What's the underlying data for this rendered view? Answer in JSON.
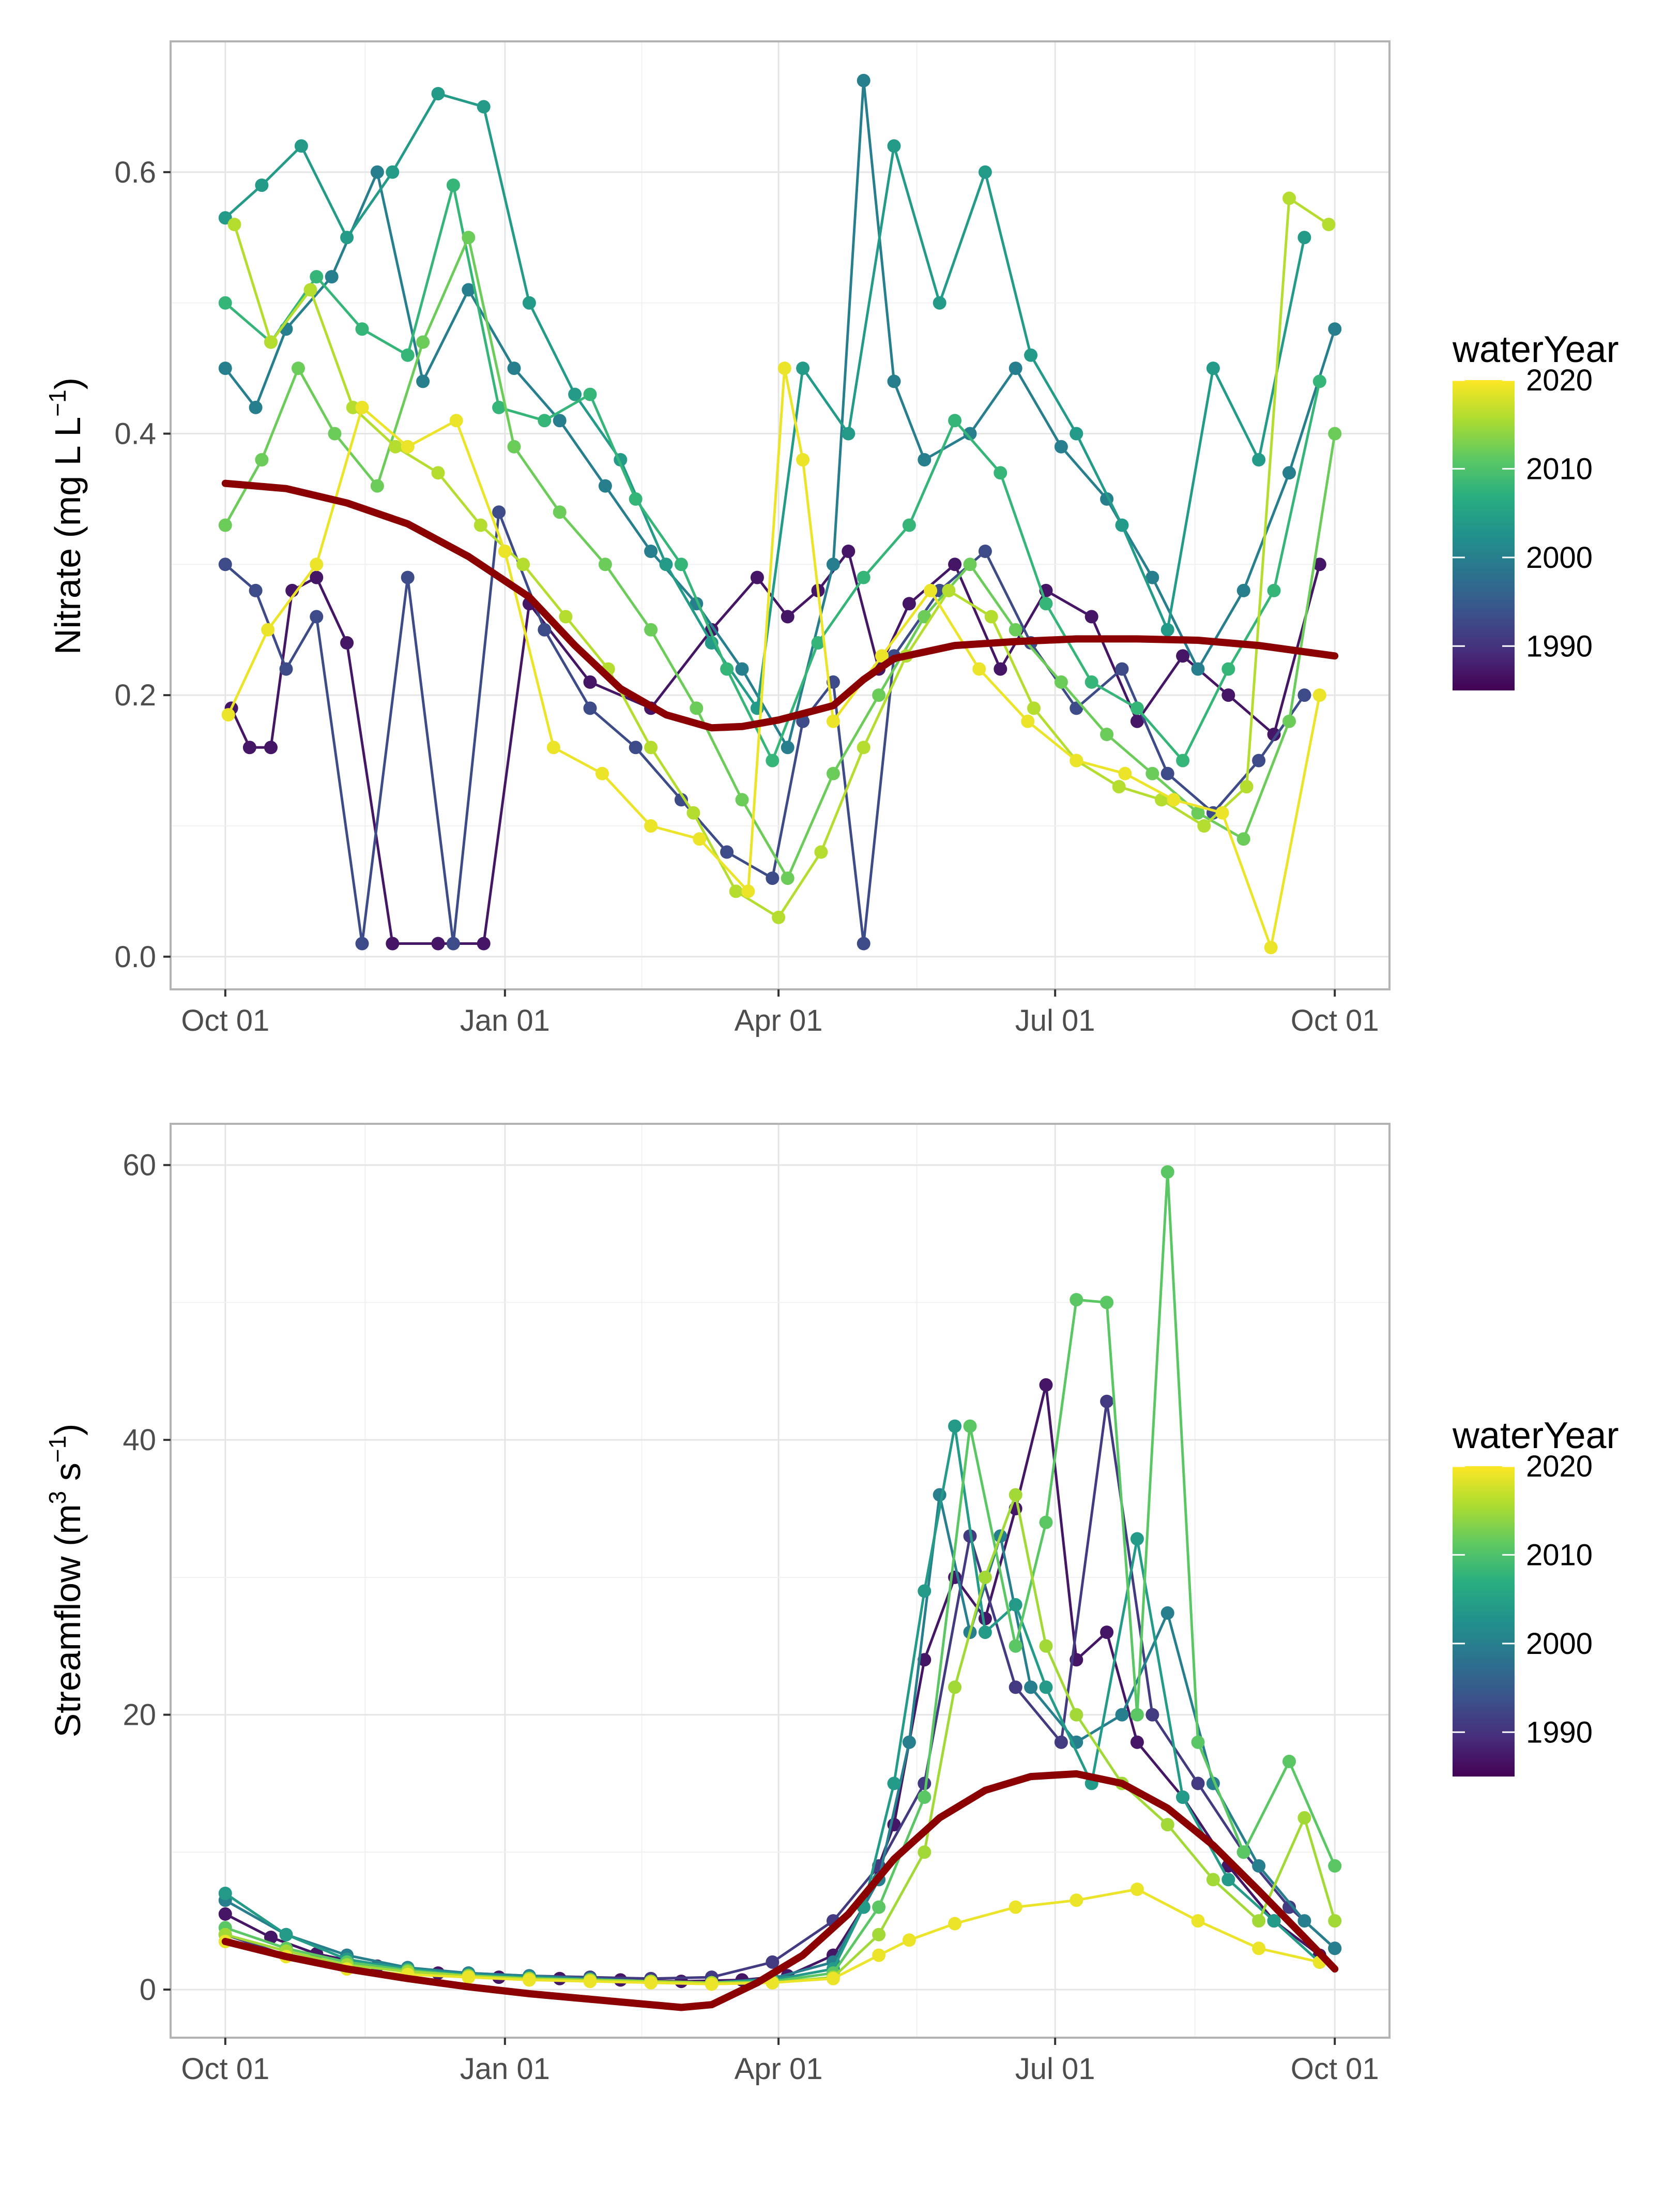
{
  "chart_data": [
    {
      "type": "line",
      "ylabel_main": "Nitrate (mg L L",
      "ylabel_sup": "−1",
      "ylabel_end": ")",
      "xlabel": "",
      "x_ticks": [
        "Oct 01",
        "Jan 01",
        "Apr 01",
        "Jul 01",
        "Oct 01"
      ],
      "x_tick_days": [
        0,
        92,
        182,
        273,
        365
      ],
      "xlim_days": [
        -18,
        383
      ],
      "y_ticks": [
        "0.0",
        "0.2",
        "0.4",
        "0.6"
      ],
      "y_tick_values": [
        0.0,
        0.2,
        0.4,
        0.6
      ],
      "ylim": [
        -0.025,
        0.7
      ],
      "grid": true,
      "legend": {
        "title": "waterYear",
        "labels": [
          "2020",
          "2010",
          "2000",
          "1990"
        ],
        "label_values": [
          2020,
          2010,
          2000,
          1990
        ],
        "range": [
          1985,
          2020
        ],
        "placement": "right"
      },
      "trend_color": "#8b0000",
      "trend": {
        "x": [
          0,
          20,
          40,
          60,
          80,
          100,
          115,
          130,
          145,
          160,
          170,
          182,
          200,
          210,
          220,
          240,
          260,
          280,
          300,
          320,
          340,
          365
        ],
        "y": [
          0.362,
          0.358,
          0.347,
          0.331,
          0.306,
          0.275,
          0.238,
          0.205,
          0.185,
          0.175,
          0.176,
          0.181,
          0.192,
          0.212,
          0.228,
          0.238,
          0.241,
          0.243,
          0.243,
          0.242,
          0.238,
          0.23
        ]
      },
      "series": [
        {
          "year": 1987,
          "x": [
            2,
            8,
            15,
            22,
            30,
            40,
            55,
            70,
            85,
            100,
            120,
            140,
            160,
            175,
            185,
            195,
            205,
            215,
            225,
            240,
            255,
            270,
            285,
            300,
            315,
            330,
            345,
            360
          ],
          "y": [
            0.19,
            0.16,
            0.16,
            0.28,
            0.29,
            0.24,
            0.01,
            0.01,
            0.01,
            0.27,
            0.21,
            0.19,
            0.25,
            0.29,
            0.26,
            0.28,
            0.31,
            0.22,
            0.27,
            0.3,
            0.22,
            0.28,
            0.26,
            0.18,
            0.23,
            0.2,
            0.17,
            0.3
          ]
        },
        {
          "year": 1993,
          "x": [
            0,
            10,
            20,
            30,
            45,
            60,
            75,
            90,
            105,
            120,
            135,
            150,
            165,
            180,
            190,
            200,
            210,
            220,
            235,
            250,
            265,
            280,
            295,
            310,
            325,
            340,
            355
          ],
          "y": [
            0.3,
            0.28,
            0.22,
            0.26,
            0.01,
            0.29,
            0.01,
            0.34,
            0.25,
            0.19,
            0.16,
            0.12,
            0.08,
            0.06,
            0.18,
            0.21,
            0.01,
            0.23,
            0.28,
            0.31,
            0.24,
            0.19,
            0.22,
            0.14,
            0.11,
            0.15,
            0.2
          ]
        },
        {
          "year": 2000,
          "x": [
            0,
            10,
            20,
            35,
            50,
            65,
            80,
            95,
            110,
            125,
            140,
            155,
            170,
            185,
            200,
            210,
            220,
            230,
            245,
            260,
            275,
            290,
            305,
            320,
            335,
            350,
            365
          ],
          "y": [
            0.45,
            0.42,
            0.48,
            0.52,
            0.6,
            0.44,
            0.51,
            0.45,
            0.41,
            0.36,
            0.31,
            0.27,
            0.22,
            0.16,
            0.3,
            0.67,
            0.44,
            0.38,
            0.4,
            0.45,
            0.39,
            0.35,
            0.29,
            0.22,
            0.28,
            0.37,
            0.48
          ]
        },
        {
          "year": 2004,
          "x": [
            0,
            12,
            25,
            40,
            55,
            70,
            85,
            100,
            115,
            130,
            145,
            160,
            175,
            190,
            205,
            220,
            235,
            250,
            265,
            280,
            295,
            310,
            325,
            340,
            355
          ],
          "y": [
            0.565,
            0.59,
            0.62,
            0.55,
            0.6,
            0.66,
            0.65,
            0.5,
            0.43,
            0.38,
            0.3,
            0.24,
            0.19,
            0.45,
            0.4,
            0.62,
            0.5,
            0.6,
            0.46,
            0.4,
            0.33,
            0.25,
            0.45,
            0.38,
            0.55
          ]
        },
        {
          "year": 2008,
          "x": [
            0,
            15,
            30,
            45,
            60,
            75,
            90,
            105,
            120,
            135,
            150,
            165,
            180,
            195,
            210,
            225,
            240,
            255,
            270,
            285,
            300,
            315,
            330,
            345,
            360
          ],
          "y": [
            0.5,
            0.47,
            0.52,
            0.48,
            0.46,
            0.59,
            0.42,
            0.41,
            0.43,
            0.35,
            0.3,
            0.22,
            0.15,
            0.24,
            0.29,
            0.33,
            0.41,
            0.37,
            0.27,
            0.21,
            0.19,
            0.15,
            0.22,
            0.28,
            0.44
          ]
        },
        {
          "year": 2012,
          "x": [
            0,
            12,
            24,
            36,
            50,
            65,
            80,
            95,
            110,
            125,
            140,
            155,
            170,
            185,
            200,
            215,
            230,
            245,
            260,
            275,
            290,
            305,
            320,
            335,
            350,
            365
          ],
          "y": [
            0.33,
            0.38,
            0.45,
            0.4,
            0.36,
            0.47,
            0.55,
            0.39,
            0.34,
            0.3,
            0.25,
            0.19,
            0.12,
            0.06,
            0.14,
            0.2,
            0.26,
            0.3,
            0.25,
            0.21,
            0.17,
            0.14,
            0.11,
            0.09,
            0.18,
            0.4
          ]
        },
        {
          "year": 2016,
          "x": [
            3,
            15,
            28,
            42,
            56,
            70,
            84,
            98,
            112,
            126,
            140,
            154,
            168,
            182,
            196,
            210,
            224,
            238,
            252,
            266,
            280,
            294,
            308,
            322,
            336,
            350,
            363
          ],
          "y": [
            0.56,
            0.47,
            0.51,
            0.42,
            0.39,
            0.37,
            0.33,
            0.3,
            0.26,
            0.22,
            0.16,
            0.11,
            0.05,
            0.03,
            0.08,
            0.16,
            0.23,
            0.28,
            0.26,
            0.19,
            0.15,
            0.13,
            0.12,
            0.1,
            0.13,
            0.58,
            0.56
          ]
        },
        {
          "year": 2019,
          "x": [
            1,
            14,
            30,
            45,
            60,
            76,
            92,
            108,
            124,
            140,
            156,
            172,
            184,
            190,
            200,
            216,
            232,
            248,
            264,
            280,
            296,
            312,
            328,
            344,
            360
          ],
          "y": [
            0.185,
            0.25,
            0.3,
            0.42,
            0.39,
            0.41,
            0.31,
            0.16,
            0.14,
            0.1,
            0.09,
            0.05,
            0.45,
            0.38,
            0.18,
            0.23,
            0.28,
            0.22,
            0.18,
            0.15,
            0.14,
            0.12,
            0.11,
            0.007,
            0.2
          ]
        }
      ]
    },
    {
      "type": "line",
      "ylabel_main": "Streamflow (m",
      "ylabel_sup": "3",
      "ylabel_mid": " s",
      "ylabel_sup2": "−1",
      "ylabel_end": ")",
      "xlabel": "",
      "x_ticks": [
        "Oct 01",
        "Jan 01",
        "Apr 01",
        "Jul 01",
        "Oct 01"
      ],
      "x_tick_days": [
        0,
        92,
        182,
        273,
        365
      ],
      "xlim_days": [
        -18,
        383
      ],
      "y_ticks": [
        "0",
        "20",
        "40",
        "60"
      ],
      "y_tick_values": [
        0,
        20,
        40,
        60
      ],
      "ylim": [
        -3.5,
        63
      ],
      "grid": true,
      "legend": {
        "title": "waterYear",
        "labels": [
          "2020",
          "2010",
          "2000",
          "1990"
        ],
        "label_values": [
          2020,
          2010,
          2000,
          1990
        ],
        "range": [
          1985,
          2020
        ],
        "placement": "right"
      },
      "trend_color": "#8b0000",
      "trend": {
        "x": [
          0,
          20,
          40,
          60,
          80,
          100,
          120,
          135,
          150,
          160,
          175,
          190,
          205,
          220,
          235,
          250,
          265,
          280,
          295,
          310,
          325,
          340,
          355,
          365
        ],
        "y": [
          3.5,
          2.4,
          1.5,
          0.8,
          0.2,
          -0.3,
          -0.7,
          -1.0,
          -1.3,
          -1.1,
          0.5,
          2.5,
          5.5,
          9.5,
          12.5,
          14.5,
          15.5,
          15.7,
          15.0,
          13.2,
          10.5,
          7.2,
          3.8,
          1.5
        ]
      },
      "series": [
        {
          "year": 1987,
          "x": [
            0,
            15,
            30,
            50,
            70,
            90,
            110,
            130,
            150,
            170,
            185,
            200,
            210,
            220,
            230,
            240,
            250,
            260,
            270,
            280,
            290,
            300,
            315,
            330,
            345,
            360
          ],
          "y": [
            5.5,
            3.8,
            2.6,
            1.7,
            1.2,
            0.9,
            0.8,
            0.7,
            0.6,
            0.7,
            1.0,
            2.5,
            6.0,
            12.0,
            24.0,
            30.0,
            27.0,
            35.0,
            44.0,
            24.0,
            26.0,
            18.0,
            14.0,
            9.0,
            5.0,
            2.5
          ]
        },
        {
          "year": 1991,
          "x": [
            0,
            20,
            40,
            60,
            80,
            100,
            120,
            140,
            160,
            180,
            200,
            215,
            230,
            245,
            260,
            275,
            290,
            305,
            320,
            335,
            350,
            365
          ],
          "y": [
            4.0,
            2.5,
            1.8,
            1.4,
            1.2,
            1.0,
            0.9,
            0.8,
            0.9,
            2.0,
            5.0,
            9.0,
            15.0,
            33.0,
            22.0,
            18.0,
            42.8,
            20.0,
            15.0,
            10.0,
            6.0,
            3.0
          ]
        },
        {
          "year": 2000,
          "x": [
            0,
            20,
            40,
            60,
            80,
            100,
            120,
            140,
            160,
            180,
            200,
            215,
            225,
            235,
            245,
            255,
            265,
            280,
            295,
            310,
            325,
            340,
            355,
            365
          ],
          "y": [
            6.5,
            4.0,
            2.5,
            1.6,
            1.2,
            1.0,
            0.8,
            0.6,
            0.5,
            0.8,
            2.0,
            8.0,
            18.0,
            36.0,
            26.0,
            33.0,
            22.0,
            18.0,
            20.0,
            27.4,
            15.0,
            9.0,
            5.0,
            3.0
          ]
        },
        {
          "year": 2004,
          "x": [
            0,
            20,
            40,
            60,
            80,
            100,
            120,
            140,
            160,
            180,
            200,
            210,
            220,
            230,
            240,
            250,
            260,
            270,
            285,
            300,
            315,
            330,
            345,
            360
          ],
          "y": [
            7.0,
            4.0,
            2.2,
            1.5,
            1.1,
            0.9,
            0.7,
            0.6,
            0.5,
            0.7,
            1.5,
            6.0,
            15.0,
            29.0,
            41.0,
            26.0,
            28.0,
            22.0,
            15.0,
            32.8,
            14.0,
            8.0,
            5.0,
            2.0
          ]
        },
        {
          "year": 2011,
          "x": [
            0,
            20,
            40,
            60,
            80,
            100,
            120,
            140,
            160,
            180,
            200,
            215,
            230,
            245,
            260,
            270,
            280,
            290,
            300,
            310,
            320,
            335,
            350,
            365
          ],
          "y": [
            4.5,
            3.0,
            2.0,
            1.4,
            1.0,
            0.8,
            0.7,
            0.6,
            0.5,
            0.6,
            1.2,
            6.0,
            14.0,
            41.0,
            25.0,
            34.0,
            50.2,
            50.0,
            20.0,
            59.5,
            18.0,
            10.0,
            16.6,
            9.0
          ]
        },
        {
          "year": 2015,
          "x": [
            0,
            20,
            40,
            60,
            80,
            100,
            120,
            140,
            160,
            180,
            200,
            215,
            230,
            240,
            250,
            260,
            270,
            280,
            295,
            310,
            325,
            340,
            355,
            365
          ],
          "y": [
            4.0,
            2.8,
            1.8,
            1.3,
            1.0,
            0.8,
            0.7,
            0.6,
            0.5,
            0.5,
            0.9,
            4.0,
            10.0,
            22.0,
            30.0,
            36.0,
            25.0,
            20.0,
            15.0,
            12.0,
            8.0,
            5.0,
            12.5,
            5.0
          ]
        },
        {
          "year": 2019,
          "x": [
            0,
            20,
            40,
            60,
            80,
            100,
            120,
            140,
            160,
            180,
            200,
            215,
            225,
            240,
            260,
            280,
            300,
            320,
            340,
            360
          ],
          "y": [
            3.5,
            2.4,
            1.5,
            1.1,
            0.9,
            0.7,
            0.6,
            0.5,
            0.4,
            0.5,
            0.8,
            2.5,
            3.6,
            4.8,
            6.0,
            6.5,
            7.3,
            5.0,
            3.0,
            2.0
          ]
        }
      ]
    }
  ]
}
